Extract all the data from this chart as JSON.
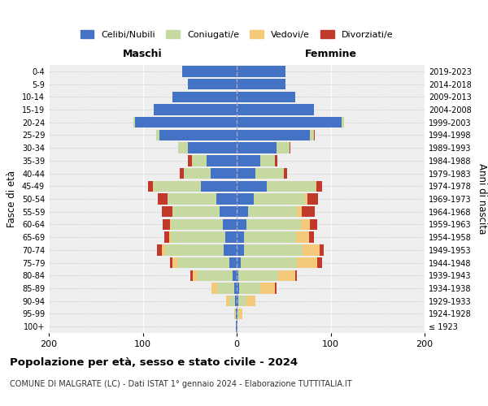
{
  "age_groups": [
    "100+",
    "95-99",
    "90-94",
    "85-89",
    "80-84",
    "75-79",
    "70-74",
    "65-69",
    "60-64",
    "55-59",
    "50-54",
    "45-49",
    "40-44",
    "35-39",
    "30-34",
    "25-29",
    "20-24",
    "15-19",
    "10-14",
    "5-9",
    "0-4"
  ],
  "birth_years": [
    "≤ 1923",
    "1924-1928",
    "1929-1933",
    "1934-1938",
    "1939-1943",
    "1944-1948",
    "1949-1953",
    "1954-1958",
    "1959-1963",
    "1964-1968",
    "1969-1973",
    "1974-1978",
    "1979-1983",
    "1984-1988",
    "1989-1993",
    "1994-1998",
    "1999-2003",
    "2004-2008",
    "2009-2013",
    "2014-2018",
    "2019-2023"
  ],
  "colors": {
    "celibi": "#4472c4",
    "coniugati": "#c5d9a0",
    "vedovi": "#f5c97a",
    "divorziati": "#c0392b"
  },
  "maschi": {
    "celibi": [
      1,
      1,
      2,
      3,
      4,
      8,
      14,
      12,
      15,
      18,
      22,
      38,
      28,
      32,
      52,
      82,
      108,
      88,
      68,
      52,
      58
    ],
    "coniugati": [
      0,
      1,
      6,
      18,
      38,
      55,
      62,
      58,
      55,
      50,
      52,
      50,
      28,
      16,
      10,
      4,
      2,
      0,
      0,
      0,
      0
    ],
    "vedovi": [
      0,
      1,
      3,
      6,
      5,
      5,
      4,
      2,
      1,
      0,
      0,
      1,
      0,
      0,
      0,
      0,
      0,
      0,
      0,
      0,
      0
    ],
    "divorziati": [
      0,
      0,
      0,
      0,
      2,
      3,
      5,
      5,
      8,
      12,
      10,
      5,
      5,
      4,
      0,
      0,
      0,
      0,
      0,
      0,
      0
    ]
  },
  "femmine": {
    "nubili": [
      1,
      1,
      2,
      3,
      2,
      4,
      8,
      8,
      10,
      12,
      18,
      32,
      20,
      25,
      42,
      78,
      112,
      82,
      62,
      52,
      52
    ],
    "coniugate": [
      0,
      2,
      8,
      22,
      42,
      60,
      62,
      55,
      58,
      52,
      55,
      52,
      30,
      16,
      14,
      4,
      2,
      0,
      0,
      0,
      0
    ],
    "vedove": [
      0,
      3,
      10,
      16,
      18,
      22,
      18,
      14,
      10,
      5,
      2,
      1,
      0,
      0,
      0,
      0,
      0,
      0,
      0,
      0,
      0
    ],
    "divorziate": [
      0,
      0,
      0,
      1,
      2,
      5,
      5,
      5,
      8,
      14,
      12,
      6,
      4,
      2,
      1,
      1,
      0,
      0,
      0,
      0,
      0
    ]
  },
  "xlim": 200,
  "title": "Popolazione per età, sesso e stato civile - 2024",
  "subtitle": "COMUNE DI MALGRATE (LC) - Dati ISTAT 1° gennaio 2024 - Elaborazione TUTTITALIA.IT",
  "xlabel_left": "Maschi",
  "xlabel_right": "Femmine",
  "ylabel_left": "Fasce di età",
  "ylabel_right": "Anni di nascita",
  "legend_labels": [
    "Celibi/Nubili",
    "Coniugati/e",
    "Vedovi/e",
    "Divorziati/e"
  ],
  "bg_color": "#ffffff",
  "ax_bg_color": "#eeeeee"
}
